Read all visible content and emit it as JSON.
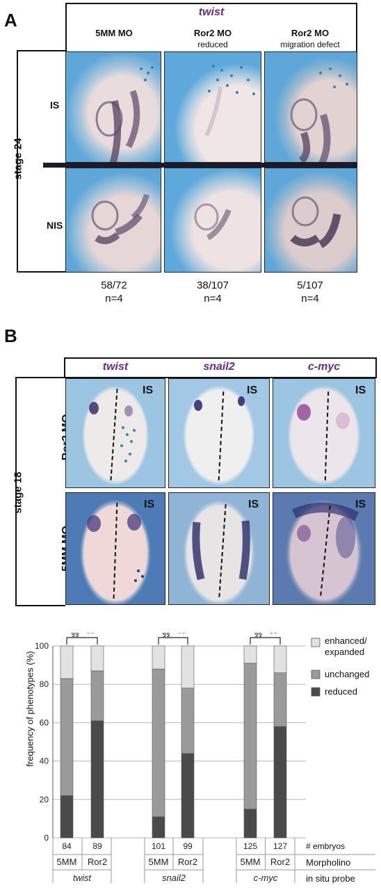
{
  "panelA": {
    "letter": "A",
    "probe": "twist",
    "columns": [
      {
        "title": "5MM MO",
        "subtitle": ""
      },
      {
        "title": "Ror2 MO",
        "subtitle": "reduced"
      },
      {
        "title": "Ror2 MO",
        "subtitle": "migration defect"
      }
    ],
    "stage": "stage 24",
    "rows": [
      "IS",
      "NIS"
    ],
    "counts": [
      {
        "ratio": "58/72",
        "n": "n=4"
      },
      {
        "ratio": "38/107",
        "n": "n=4"
      },
      {
        "ratio": "5/107",
        "n": "n=4"
      }
    ]
  },
  "panelB": {
    "letter": "B",
    "probes": [
      "twist",
      "snail2",
      "c-myc"
    ],
    "stage": "stage 18",
    "rows": [
      "Ror2 MO",
      "5MM MO"
    ],
    "side_tag": "IS"
  },
  "chart_data": {
    "type": "bar",
    "stacked": true,
    "ylabel": "frequency of phenotypes (%)",
    "ylim": [
      0,
      100
    ],
    "yticks": [
      0,
      20,
      40,
      60,
      80,
      100
    ],
    "grid": true,
    "legend_position": "top-right",
    "groups": [
      {
        "probe": "twist",
        "bars": [
          {
            "morpholino": "5MM",
            "embryos": "84",
            "reduced": 22,
            "unchanged": 61,
            "enhanced": 17
          },
          {
            "morpholino": "Ror2",
            "embryos": "89",
            "reduced": 61,
            "unchanged": 26,
            "enhanced": 13
          }
        ],
        "significance": [
          "§§",
          "**"
        ]
      },
      {
        "probe": "snail2",
        "bars": [
          {
            "morpholino": "5MM",
            "embryos": "101",
            "reduced": 11,
            "unchanged": 77,
            "enhanced": 12
          },
          {
            "morpholino": "Ror2",
            "embryos": "99",
            "reduced": 44,
            "unchanged": 34,
            "enhanced": 22
          }
        ],
        "significance": [
          "§§",
          "**"
        ]
      },
      {
        "probe": "c-myc",
        "bars": [
          {
            "morpholino": "5MM",
            "embryos": "125",
            "reduced": 15,
            "unchanged": 76,
            "enhanced": 9
          },
          {
            "morpholino": "Ror2",
            "embryos": "127",
            "reduced": 58,
            "unchanged": 28,
            "enhanced": 14
          }
        ],
        "significance": [
          "§§",
          "**"
        ]
      }
    ],
    "series": [
      {
        "name": "enhanced/ expanded",
        "color": "#e2e2e2"
      },
      {
        "name": "unchanged",
        "color": "#9a9a9a"
      },
      {
        "name": "reduced",
        "color": "#4a4a4a"
      }
    ],
    "row_labels": [
      "# embryos",
      "Morpholino",
      "in situ probe"
    ]
  }
}
